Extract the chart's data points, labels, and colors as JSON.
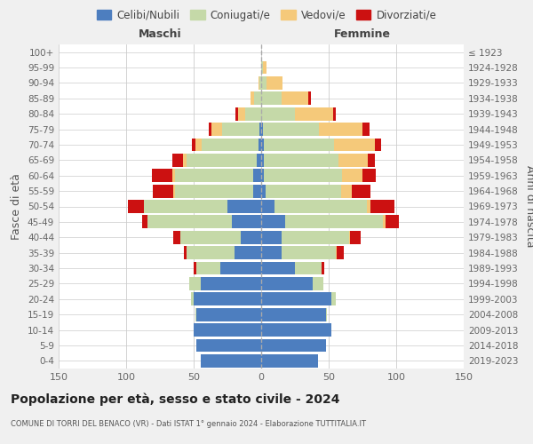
{
  "age_groups": [
    "0-4",
    "5-9",
    "10-14",
    "15-19",
    "20-24",
    "25-29",
    "30-34",
    "35-39",
    "40-44",
    "45-49",
    "50-54",
    "55-59",
    "60-64",
    "65-69",
    "70-74",
    "75-79",
    "80-84",
    "85-89",
    "90-94",
    "95-99",
    "100+"
  ],
  "birth_years": [
    "2019-2023",
    "2014-2018",
    "2009-2013",
    "2004-2008",
    "1999-2003",
    "1994-1998",
    "1989-1993",
    "1984-1988",
    "1979-1983",
    "1974-1978",
    "1969-1973",
    "1964-1968",
    "1959-1963",
    "1954-1958",
    "1949-1953",
    "1944-1948",
    "1939-1943",
    "1934-1938",
    "1929-1933",
    "1924-1928",
    "≤ 1923"
  ],
  "male_celibi": [
    45,
    48,
    50,
    48,
    50,
    45,
    30,
    20,
    15,
    22,
    25,
    6,
    6,
    3,
    2,
    1,
    0,
    0,
    0,
    0,
    0
  ],
  "male_coniugati": [
    0,
    0,
    0,
    1,
    2,
    8,
    18,
    35,
    45,
    62,
    62,
    58,
    58,
    52,
    42,
    28,
    12,
    5,
    1,
    0,
    0
  ],
  "male_vedovi": [
    0,
    0,
    0,
    0,
    0,
    0,
    0,
    0,
    0,
    0,
    0,
    1,
    2,
    3,
    5,
    8,
    5,
    3,
    1,
    0,
    0
  ],
  "male_divorziati": [
    0,
    0,
    0,
    0,
    0,
    0,
    2,
    2,
    5,
    4,
    12,
    15,
    15,
    8,
    2,
    2,
    2,
    0,
    0,
    0,
    0
  ],
  "female_nubili": [
    42,
    48,
    52,
    48,
    52,
    38,
    25,
    15,
    15,
    18,
    10,
    3,
    2,
    2,
    2,
    1,
    0,
    0,
    0,
    0,
    0
  ],
  "female_coniugate": [
    0,
    0,
    0,
    1,
    3,
    8,
    20,
    40,
    50,
    72,
    68,
    56,
    58,
    55,
    52,
    42,
    25,
    15,
    4,
    1,
    0
  ],
  "female_vedove": [
    0,
    0,
    0,
    0,
    0,
    0,
    0,
    1,
    1,
    2,
    3,
    8,
    15,
    22,
    30,
    32,
    28,
    20,
    12,
    3,
    0
  ],
  "female_divorziate": [
    0,
    0,
    0,
    0,
    0,
    0,
    2,
    5,
    8,
    10,
    18,
    14,
    10,
    5,
    5,
    5,
    2,
    2,
    0,
    0,
    0
  ],
  "colors_celibi": "#4d7ebf",
  "colors_coniugati": "#c5d9a8",
  "colors_vedovi": "#f5c97a",
  "colors_divorziati": "#cc1111",
  "xlim": 150,
  "title": "Popolazione per età, sesso e stato civile - 2024",
  "subtitle": "COMUNE DI TORRI DEL BENACO (VR) - Dati ISTAT 1° gennaio 2024 - Elaborazione TUTTITALIA.IT",
  "legend_labels": [
    "Celibi/Nubili",
    "Coniugati/e",
    "Vedovi/e",
    "Divorziati/e"
  ],
  "ylabel_left": "Fasce di età",
  "ylabel_right": "Anni di nascita",
  "label_male": "Maschi",
  "label_female": "Femmine",
  "bg_color": "#f0f0f0",
  "plot_bg_color": "#ffffff"
}
